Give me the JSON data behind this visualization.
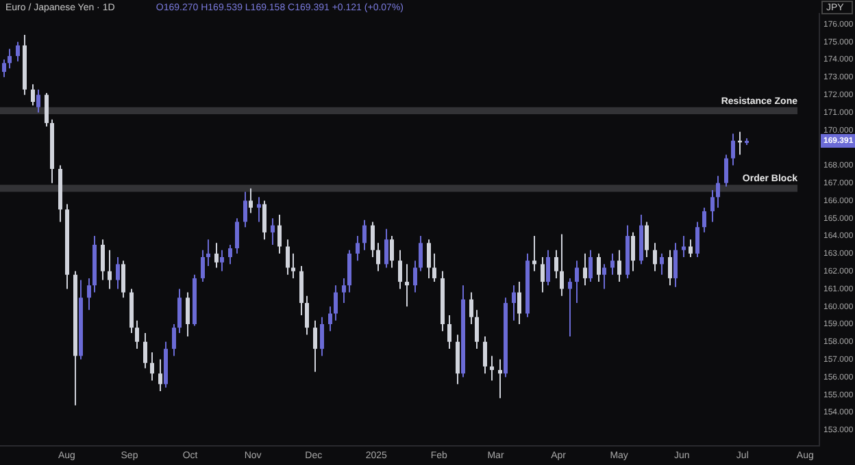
{
  "chart_data": {
    "type": "candlestick",
    "title": "Euro / Japanese Yen · 1D",
    "subtitle": "O169.270 H169.539 L169.158 C169.391 +0.121 (+0.07%)",
    "ylabel": "JPY",
    "annotations": [
      "169.391"
    ],
    "x": [
      "2024-07-01",
      "2024-07-04",
      "2024-07-08",
      "2024-07-11",
      "2024-07-15",
      "2024-07-18",
      "2024-07-22",
      "2024-07-25",
      "2024-07-29",
      "2024-08-01",
      "2024-08-05",
      "2024-08-08",
      "2024-08-12",
      "2024-08-15",
      "2024-08-19",
      "2024-08-22",
      "2024-08-26",
      "2024-08-29",
      "2024-09-02",
      "2024-09-05",
      "2024-09-09",
      "2024-09-12",
      "2024-09-16",
      "2024-09-19",
      "2024-09-23",
      "2024-09-26",
      "2024-09-30",
      "2024-10-03",
      "2024-10-07",
      "2024-10-10",
      "2024-10-14",
      "2024-10-17",
      "2024-10-21",
      "2024-10-24",
      "2024-10-28",
      "2024-10-31",
      "2024-11-04",
      "2024-11-07",
      "2024-11-11",
      "2024-11-14",
      "2024-11-18",
      "2024-11-21",
      "2024-11-25",
      "2024-11-28",
      "2024-12-02",
      "2024-12-05",
      "2024-12-09",
      "2024-12-12",
      "2024-12-16",
      "2024-12-19",
      "2024-12-23",
      "2024-12-26",
      "2024-12-30",
      "2025-01-02",
      "2025-01-06",
      "2025-01-09",
      "2025-01-13",
      "2025-01-16",
      "2025-01-20",
      "2025-01-23",
      "2025-01-27",
      "2025-01-30",
      "2025-02-03",
      "2025-02-06",
      "2025-02-10",
      "2025-02-13",
      "2025-02-17",
      "2025-02-20",
      "2025-02-24",
      "2025-02-27",
      "2025-03-03",
      "2025-03-06",
      "2025-03-10",
      "2025-03-13",
      "2025-03-17",
      "2025-03-20",
      "2025-03-24",
      "2025-03-27",
      "2025-03-31",
      "2025-04-03",
      "2025-04-07",
      "2025-04-10",
      "2025-04-14",
      "2025-04-17",
      "2025-04-21",
      "2025-04-24",
      "2025-04-28",
      "2025-05-01",
      "2025-05-05",
      "2025-05-08",
      "2025-05-12",
      "2025-05-15",
      "2025-05-19",
      "2025-05-22",
      "2025-05-26",
      "2025-05-29",
      "2025-06-02",
      "2025-06-05",
      "2025-06-09",
      "2025-06-12",
      "2025-06-16",
      "2025-06-19",
      "2025-06-23",
      "2025-06-26",
      "2025-06-30",
      "2025-07-03"
    ],
    "ohlc": [
      [
        173.3,
        174.0,
        173.0,
        173.8
      ],
      [
        173.8,
        174.6,
        173.5,
        174.2
      ],
      [
        174.2,
        175.0,
        173.9,
        174.8
      ],
      [
        174.8,
        175.4,
        172.0,
        172.3
      ],
      [
        172.3,
        172.6,
        171.4,
        171.6
      ],
      [
        171.3,
        172.3,
        171.0,
        172.0
      ],
      [
        172.0,
        172.1,
        170.2,
        170.4
      ],
      [
        170.4,
        170.6,
        167.0,
        167.8
      ],
      [
        167.8,
        168.0,
        164.8,
        165.5
      ],
      [
        165.5,
        165.8,
        161.0,
        161.8
      ],
      [
        161.8,
        162.0,
        154.4,
        157.2
      ],
      [
        157.2,
        161.5,
        157.0,
        160.5
      ],
      [
        160.5,
        161.6,
        159.8,
        161.2
      ],
      [
        161.2,
        164.0,
        160.8,
        163.5
      ],
      [
        163.5,
        163.8,
        161.5,
        162.0
      ],
      [
        162.0,
        163.2,
        161.0,
        161.5
      ],
      [
        161.5,
        162.8,
        161.0,
        162.4
      ],
      [
        162.4,
        162.6,
        160.5,
        160.8
      ],
      [
        160.8,
        161.0,
        158.5,
        158.8
      ],
      [
        158.8,
        159.2,
        157.6,
        158.0
      ],
      [
        158.0,
        158.5,
        156.5,
        156.8
      ],
      [
        156.8,
        157.4,
        155.8,
        156.2
      ],
      [
        156.2,
        157.0,
        155.2,
        155.6
      ],
      [
        155.6,
        158.0,
        155.4,
        157.6
      ],
      [
        157.6,
        159.0,
        157.2,
        158.8
      ],
      [
        158.8,
        161.0,
        158.5,
        160.5
      ],
      [
        160.5,
        160.8,
        158.3,
        159.0
      ],
      [
        159.0,
        161.8,
        158.9,
        161.6
      ],
      [
        161.6,
        163.2,
        161.4,
        162.8
      ],
      [
        162.8,
        163.8,
        162.3,
        163.0
      ],
      [
        163.0,
        163.6,
        162.2,
        162.5
      ],
      [
        162.5,
        163.2,
        162.0,
        162.8
      ],
      [
        162.8,
        163.5,
        162.4,
        163.3
      ],
      [
        163.3,
        165.0,
        163.0,
        164.8
      ],
      [
        164.8,
        166.5,
        164.5,
        166.0
      ],
      [
        166.0,
        166.7,
        165.3,
        165.6
      ],
      [
        165.6,
        166.2,
        164.8,
        165.8
      ],
      [
        165.8,
        166.0,
        163.8,
        164.2
      ],
      [
        164.2,
        165.0,
        163.5,
        164.6
      ],
      [
        164.6,
        165.2,
        163.0,
        163.4
      ],
      [
        163.4,
        163.8,
        161.8,
        162.2
      ],
      [
        162.2,
        163.0,
        161.6,
        162.0
      ],
      [
        162.0,
        162.3,
        159.5,
        160.2
      ],
      [
        160.2,
        160.6,
        158.4,
        158.8
      ],
      [
        158.8,
        159.2,
        156.3,
        157.6
      ],
      [
        157.6,
        159.4,
        157.2,
        159.0
      ],
      [
        159.0,
        160.0,
        158.6,
        159.6
      ],
      [
        159.6,
        161.2,
        159.2,
        160.8
      ],
      [
        160.8,
        161.6,
        160.2,
        161.2
      ],
      [
        161.2,
        163.2,
        160.8,
        163.0
      ],
      [
        163.0,
        164.0,
        162.6,
        163.6
      ],
      [
        163.6,
        164.9,
        163.2,
        164.6
      ],
      [
        164.6,
        164.8,
        162.8,
        163.2
      ],
      [
        163.2,
        163.6,
        162.0,
        162.4
      ],
      [
        162.4,
        164.4,
        162.2,
        163.8
      ],
      [
        163.8,
        164.0,
        162.2,
        162.6
      ],
      [
        162.6,
        163.2,
        161.0,
        161.4
      ],
      [
        161.4,
        162.4,
        160.0,
        161.2
      ],
      [
        161.2,
        162.6,
        160.8,
        162.2
      ],
      [
        162.2,
        164.0,
        162.0,
        163.6
      ],
      [
        163.6,
        163.8,
        161.6,
        162.2
      ],
      [
        162.2,
        163.0,
        161.4,
        161.6
      ],
      [
        161.6,
        162.0,
        158.6,
        159.0
      ],
      [
        159.0,
        159.5,
        157.6,
        158.0
      ],
      [
        158.0,
        158.4,
        155.6,
        156.2
      ],
      [
        156.2,
        161.2,
        156.0,
        160.4
      ],
      [
        160.4,
        160.8,
        159.0,
        159.4
      ],
      [
        159.4,
        159.8,
        157.6,
        158.0
      ],
      [
        158.0,
        158.3,
        156.2,
        156.6
      ],
      [
        156.6,
        157.2,
        155.8,
        156.4
      ],
      [
        156.4,
        157.0,
        154.8,
        156.2
      ],
      [
        156.2,
        160.5,
        156.0,
        160.2
      ],
      [
        160.2,
        161.2,
        159.2,
        160.8
      ],
      [
        160.8,
        161.4,
        159.0,
        159.6
      ],
      [
        159.6,
        163.0,
        159.4,
        162.6
      ],
      [
        162.6,
        164.0,
        162.0,
        162.4
      ],
      [
        162.4,
        162.8,
        160.8,
        161.4
      ],
      [
        161.4,
        163.2,
        161.2,
        162.8
      ],
      [
        162.8,
        163.2,
        161.6,
        162.0
      ],
      [
        162.0,
        164.1,
        160.6,
        161.0
      ],
      [
        161.0,
        161.6,
        158.3,
        161.4
      ],
      [
        161.4,
        162.6,
        160.2,
        162.2
      ],
      [
        162.2,
        163.0,
        161.2,
        161.6
      ],
      [
        161.6,
        163.2,
        161.4,
        162.8
      ],
      [
        162.8,
        163.0,
        161.4,
        161.8
      ],
      [
        161.8,
        162.4,
        161.0,
        162.2
      ],
      [
        162.2,
        163.0,
        161.8,
        162.6
      ],
      [
        162.6,
        163.2,
        161.4,
        161.8
      ],
      [
        161.8,
        164.6,
        161.6,
        164.0
      ],
      [
        164.0,
        164.2,
        162.0,
        162.6
      ],
      [
        162.6,
        165.2,
        162.4,
        164.6
      ],
      [
        164.6,
        164.8,
        162.8,
        163.2
      ],
      [
        163.2,
        163.6,
        162.0,
        162.4
      ],
      [
        162.4,
        163.0,
        161.8,
        162.8
      ],
      [
        162.8,
        163.2,
        161.2,
        161.6
      ],
      [
        161.6,
        163.6,
        161.1,
        163.2
      ],
      [
        163.2,
        164.0,
        162.8,
        163.4
      ],
      [
        163.4,
        163.8,
        162.8,
        163.0
      ],
      [
        163.0,
        164.8,
        162.8,
        164.5
      ],
      [
        164.5,
        165.6,
        164.2,
        165.4
      ],
      [
        165.4,
        166.6,
        164.8,
        166.2
      ],
      [
        166.2,
        167.4,
        165.6,
        167.0
      ],
      [
        167.0,
        168.6,
        166.8,
        168.4
      ],
      [
        168.4,
        169.8,
        168.0,
        169.4
      ],
      [
        169.4,
        169.9,
        168.6,
        169.3
      ],
      [
        169.27,
        169.539,
        169.158,
        169.391
      ]
    ],
    "colors": [
      "#6b6bd6",
      "#6b6bd6",
      "#6b6bd6",
      "#d1d4dc",
      "#d1d4dc",
      "#6b6bd6",
      "#d1d4dc",
      "#d1d4dc",
      "#d1d4dc",
      "#d1d4dc",
      "#d1d4dc",
      "#6b6bd6",
      "#6b6bd6",
      "#6b6bd6",
      "#d1d4dc",
      "#d1d4dc",
      "#6b6bd6",
      "#d1d4dc",
      "#d1d4dc",
      "#d1d4dc",
      "#d1d4dc",
      "#d1d4dc",
      "#d1d4dc",
      "#6b6bd6",
      "#6b6bd6",
      "#6b6bd6",
      "#d1d4dc",
      "#6b6bd6",
      "#6b6bd6",
      "#6b6bd6",
      "#d1d4dc",
      "#6b6bd6",
      "#6b6bd6",
      "#6b6bd6",
      "#6b6bd6",
      "#d1d4dc",
      "#6b6bd6",
      "#d1d4dc",
      "#6b6bd6",
      "#d1d4dc",
      "#d1d4dc",
      "#d1d4dc",
      "#d1d4dc",
      "#d1d4dc",
      "#d1d4dc",
      "#6b6bd6",
      "#6b6bd6",
      "#6b6bd6",
      "#6b6bd6",
      "#6b6bd6",
      "#6b6bd6",
      "#6b6bd6",
      "#d1d4dc",
      "#d1d4dc",
      "#6b6bd6",
      "#d1d4dc",
      "#d1d4dc",
      "#d1d4dc",
      "#6b6bd6",
      "#6b6bd6",
      "#d1d4dc",
      "#d1d4dc",
      "#d1d4dc",
      "#d1d4dc",
      "#d1d4dc",
      "#6b6bd6",
      "#d1d4dc",
      "#d1d4dc",
      "#d1d4dc",
      "#d1d4dc",
      "#d1d4dc",
      "#6b6bd6",
      "#6b6bd6",
      "#d1d4dc",
      "#6b6bd6",
      "#d1d4dc",
      "#d1d4dc",
      "#6b6bd6",
      "#d1d4dc",
      "#d1d4dc",
      "#6b6bd6",
      "#6b6bd6",
      "#d1d4dc",
      "#6b6bd6",
      "#d1d4dc",
      "#6b6bd6",
      "#6b6bd6",
      "#d1d4dc",
      "#6b6bd6",
      "#d1d4dc",
      "#6b6bd6",
      "#d1d4dc",
      "#d1d4dc",
      "#6b6bd6",
      "#d1d4dc",
      "#6b6bd6",
      "#6b6bd6",
      "#d1d4dc",
      "#6b6bd6",
      "#6b6bd6",
      "#6b6bd6",
      "#6b6bd6",
      "#6b6bd6",
      "#6b6bd6",
      "#d1d4dc",
      "#6b6bd6"
    ],
    "bands": [
      {
        "axis": "y",
        "from": 170.9,
        "to": 171.3,
        "label": "Resistance Zone",
        "color": "#333336"
      },
      {
        "axis": "y",
        "from": 166.5,
        "to": 166.9,
        "label": "Order Block",
        "color": "#333336"
      }
    ],
    "xlim": [
      "2024-06-29",
      "2025-08-08"
    ],
    "xticks": [
      {
        "value": "2024-08-01",
        "label": "Aug"
      },
      {
        "value": "2024-09-01",
        "label": "Sep"
      },
      {
        "value": "2024-10-01",
        "label": "Oct"
      },
      {
        "value": "2024-11-01",
        "label": "Nov"
      },
      {
        "value": "2024-12-01",
        "label": "Dec"
      },
      {
        "value": "2025-01-01",
        "label": "2025"
      },
      {
        "value": "2025-02-01",
        "label": "Feb"
      },
      {
        "value": "2025-03-01",
        "label": "Mar"
      },
      {
        "value": "2025-04-01",
        "label": "Apr"
      },
      {
        "value": "2025-05-01",
        "label": "May"
      },
      {
        "value": "2025-06-01",
        "label": "Jun"
      },
      {
        "value": "2025-07-01",
        "label": "Jul"
      },
      {
        "value": "2025-08-01",
        "label": "Aug"
      }
    ],
    "ylim": [
      152.1,
      176.6
    ],
    "yticks": [
      {
        "value": 153,
        "label": "153.000"
      },
      {
        "value": 154,
        "label": "154.000"
      },
      {
        "value": 155,
        "label": "155.000"
      },
      {
        "value": 156,
        "label": "156.000"
      },
      {
        "value": 157,
        "label": "157.000"
      },
      {
        "value": 158,
        "label": "158.000"
      },
      {
        "value": 159,
        "label": "159.000"
      },
      {
        "value": 160,
        "label": "160.000"
      },
      {
        "value": 161,
        "label": "161.000"
      },
      {
        "value": 162,
        "label": "162.000"
      },
      {
        "value": 163,
        "label": "163.000"
      },
      {
        "value": 164,
        "label": "164.000"
      },
      {
        "value": 165,
        "label": "165.000"
      },
      {
        "value": 166,
        "label": "166.000"
      },
      {
        "value": 167,
        "label": "167.000"
      },
      {
        "value": 168,
        "label": "168.000"
      },
      {
        "value": 170,
        "label": "170.000"
      },
      {
        "value": 171,
        "label": "171.000"
      },
      {
        "value": 172,
        "label": "172.000"
      },
      {
        "value": 173,
        "label": "173.000"
      },
      {
        "value": 174,
        "label": "174.000"
      },
      {
        "value": 175,
        "label": "175.000"
      },
      {
        "value": 176,
        "label": "176.000"
      }
    ],
    "legend": false
  }
}
